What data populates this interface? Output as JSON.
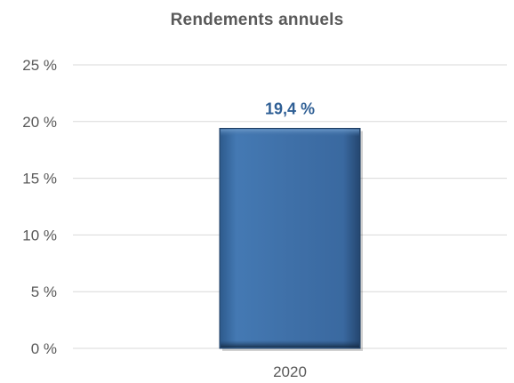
{
  "chart_data": {
    "type": "bar",
    "title": "Rendements annuels",
    "categories": [
      "2020"
    ],
    "values": [
      19.4
    ],
    "data_labels": [
      "19,4 %"
    ],
    "ylim": [
      0,
      25
    ],
    "yticks": [
      0,
      5,
      10,
      15,
      20,
      25
    ],
    "ytick_labels": [
      "0 %",
      "5 %",
      "10 %",
      "15 %",
      "20 %",
      "25 %"
    ],
    "xlabel": "",
    "ylabel": "",
    "grid": true,
    "legend": "none",
    "colors": {
      "bar_fill": "#3E6FA6",
      "bar_edge": "#1F3E63",
      "data_label": "#2F5F95",
      "gridline": "#D9D9D9",
      "text": "#595959"
    }
  }
}
